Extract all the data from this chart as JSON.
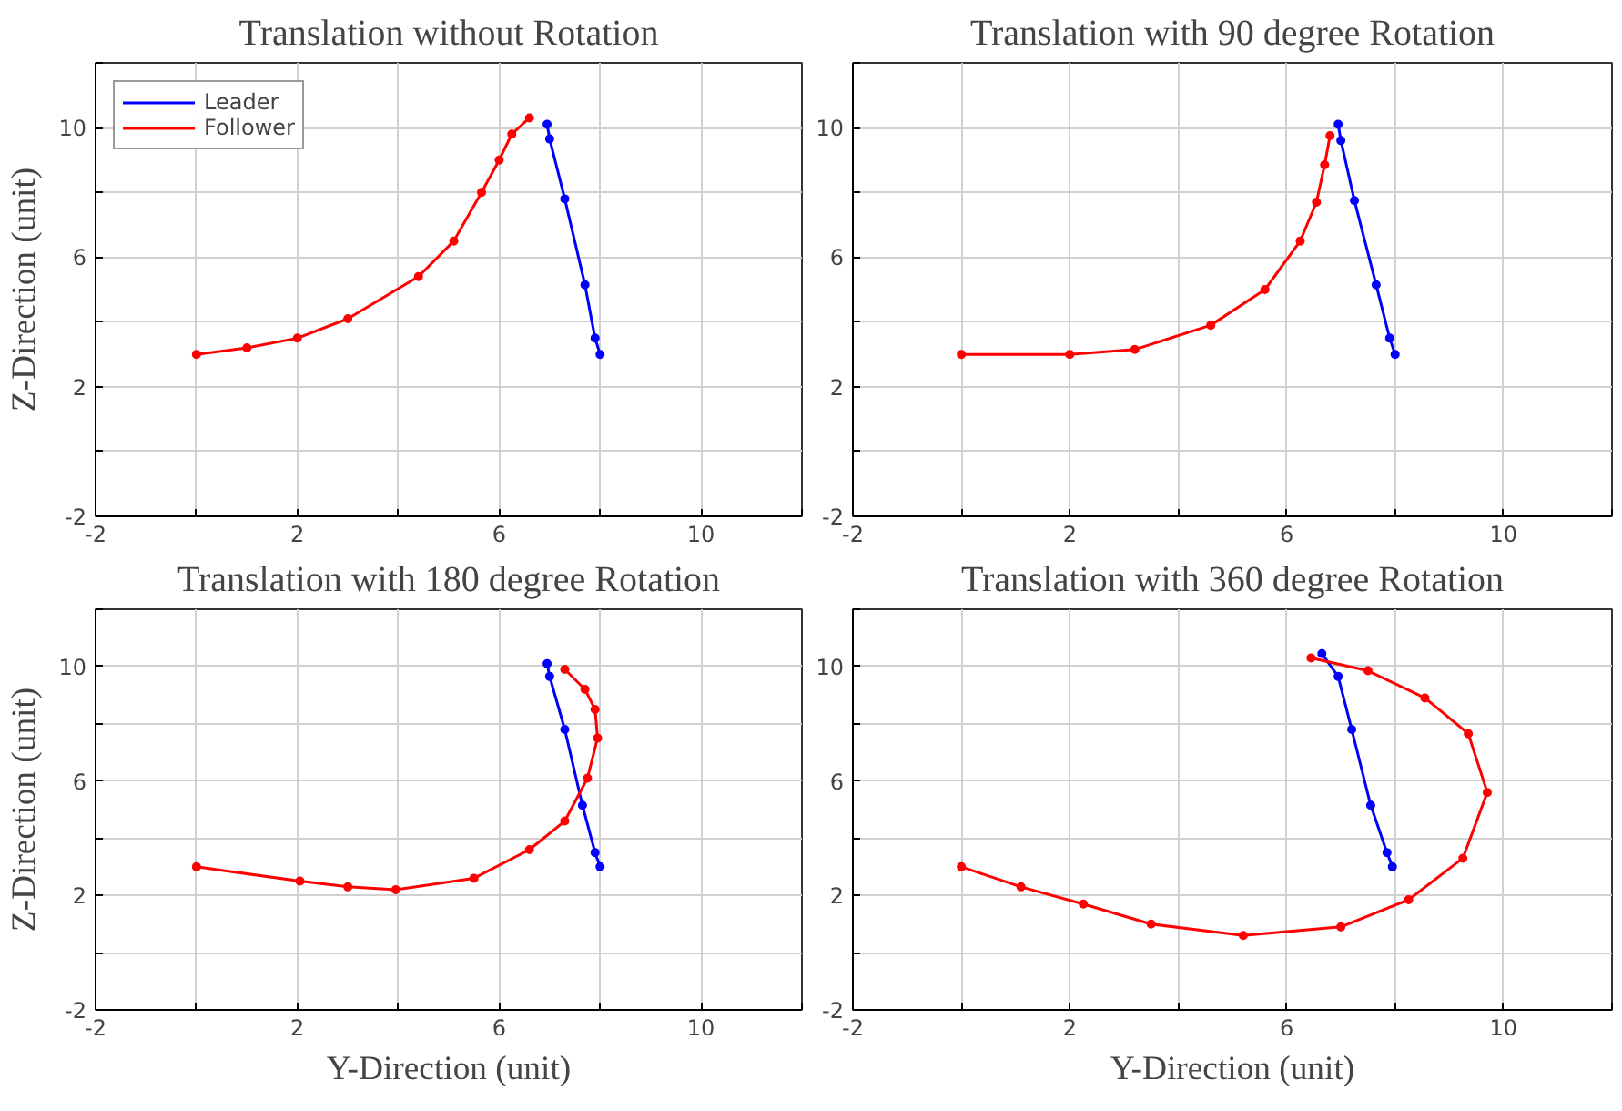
{
  "chart_data": [
    {
      "type": "line",
      "title": "Translation without Rotation",
      "ylabel": "Z-Direction (unit)",
      "xlim": [
        -2,
        12
      ],
      "ylim": [
        -2,
        12
      ],
      "xticks": [
        -2,
        {
          "value": 0,
          "label": null
        },
        2,
        {
          "value": 4,
          "label": null
        },
        6,
        {
          "value": 8,
          "label": null
        },
        10,
        {
          "value": 12,
          "label": null
        }
      ],
      "yticks": [
        -2,
        {
          "value": 0,
          "label": null
        },
        2,
        {
          "value": 4,
          "label": null
        },
        6,
        {
          "value": 8,
          "label": null
        },
        10,
        {
          "value": 12,
          "label": null
        }
      ],
      "grid": true,
      "marker": "circle",
      "legend": "top left",
      "series": [
        {
          "name": "Leader",
          "color": "#0000ff",
          "x": [
            6.95,
            7.0,
            7.3,
            7.7,
            7.9,
            8.0
          ],
          "values": [
            10.1,
            9.65,
            7.8,
            5.15,
            3.5,
            3.0
          ]
        },
        {
          "name": "Follower",
          "color": "#ff0000",
          "x": [
            0,
            1,
            2,
            3,
            4.4,
            5.1,
            5.65,
            6.0,
            6.25,
            6.6
          ],
          "values": [
            3.0,
            3.2,
            3.5,
            4.1,
            5.4,
            6.5,
            8.0,
            9.0,
            9.8,
            10.3
          ]
        }
      ]
    },
    {
      "type": "line",
      "title": "Translation with 90 degree Rotation",
      "xlim": [
        -2,
        12
      ],
      "ylim": [
        -2,
        12
      ],
      "xticks": [
        -2,
        {
          "value": 0,
          "label": null
        },
        2,
        {
          "value": 4,
          "label": null
        },
        6,
        {
          "value": 8,
          "label": null
        },
        10,
        {
          "value": 12,
          "label": null
        }
      ],
      "yticks": [
        -2,
        {
          "value": 0,
          "label": null
        },
        2,
        {
          "value": 4,
          "label": null
        },
        6,
        {
          "value": 8,
          "label": null
        },
        10,
        {
          "value": 12,
          "label": null
        }
      ],
      "grid": true,
      "marker": "circle",
      "series": [
        {
          "color": "#0000ff",
          "x": [
            6.95,
            7.0,
            7.25,
            7.65,
            7.9,
            8.0
          ],
          "values": [
            10.1,
            9.6,
            7.75,
            5.15,
            3.5,
            3.0
          ]
        },
        {
          "color": "#ff0000",
          "x": [
            0,
            2,
            3.2,
            4.6,
            5.6,
            6.25,
            6.55,
            6.7,
            6.8
          ],
          "values": [
            3.0,
            3.0,
            3.15,
            3.9,
            5.0,
            6.5,
            7.7,
            8.85,
            9.75
          ]
        }
      ]
    },
    {
      "type": "line",
      "title": "Translation with 180 degree Rotation",
      "xlabel": "Y-Direction (unit)",
      "ylabel": "Z-Direction (unit)",
      "xlim": [
        -2,
        12
      ],
      "ylim": [
        -2,
        12
      ],
      "xticks": [
        -2,
        {
          "value": 0,
          "label": null
        },
        2,
        {
          "value": 4,
          "label": null
        },
        6,
        {
          "value": 8,
          "label": null
        },
        10,
        {
          "value": 12,
          "label": null
        }
      ],
      "yticks": [
        -2,
        {
          "value": 0,
          "label": null
        },
        2,
        {
          "value": 4,
          "label": null
        },
        6,
        {
          "value": 8,
          "label": null
        },
        10,
        {
          "value": 12,
          "label": null
        }
      ],
      "grid": true,
      "marker": "circle",
      "series": [
        {
          "color": "#0000ff",
          "x": [
            6.95,
            7.0,
            7.3,
            7.65,
            7.9,
            8.0
          ],
          "values": [
            10.1,
            9.65,
            7.8,
            5.15,
            3.5,
            3.0
          ]
        },
        {
          "color": "#ff0000",
          "x": [
            0,
            2.05,
            3.0,
            3.95,
            5.5,
            6.6,
            7.3,
            7.75,
            7.95,
            7.9,
            7.7,
            7.3
          ],
          "values": [
            3.0,
            2.5,
            2.3,
            2.2,
            2.6,
            3.6,
            4.6,
            6.1,
            7.5,
            8.5,
            9.2,
            9.9
          ]
        }
      ]
    },
    {
      "type": "line",
      "title": "Translation with 360 degree Rotation",
      "xlabel": "Y-Direction (unit)",
      "xlim": [
        -2,
        12
      ],
      "ylim": [
        -2,
        12
      ],
      "xticks": [
        -2,
        {
          "value": 0,
          "label": null
        },
        2,
        {
          "value": 4,
          "label": null
        },
        6,
        {
          "value": 8,
          "label": null
        },
        10,
        {
          "value": 12,
          "label": null
        }
      ],
      "yticks": [
        -2,
        {
          "value": 0,
          "label": null
        },
        2,
        {
          "value": 4,
          "label": null
        },
        6,
        {
          "value": 8,
          "label": null
        },
        10,
        {
          "value": 12,
          "label": null
        }
      ],
      "grid": true,
      "marker": "circle",
      "series": [
        {
          "color": "#0000ff",
          "x": [
            6.65,
            6.95,
            7.2,
            7.55,
            7.85,
            7.95
          ],
          "values": [
            10.45,
            9.65,
            7.8,
            5.15,
            3.5,
            3.0
          ]
        },
        {
          "color": "#ff0000",
          "x": [
            0,
            1.1,
            2.25,
            3.5,
            5.2,
            7.0,
            8.25,
            9.25,
            9.7,
            9.35,
            8.55,
            7.5,
            6.45
          ],
          "values": [
            3.0,
            2.3,
            1.7,
            1.0,
            0.6,
            0.9,
            1.85,
            3.3,
            5.6,
            7.65,
            8.9,
            9.85,
            10.3
          ]
        }
      ]
    }
  ]
}
